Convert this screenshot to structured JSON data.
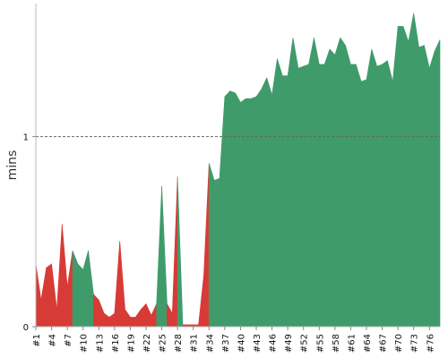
{
  "chart_data": {
    "type": "area",
    "ylabel": "mins",
    "ylim": [
      0,
      1.7
    ],
    "yticks": [
      0,
      1
    ],
    "reference_line": {
      "y": 1.0,
      "style": "dashed"
    },
    "colors": {
      "below": "#d83a36",
      "above": "#3f9b6a"
    },
    "x_tick_labels": [
      "#1",
      "#4",
      "#7",
      "#10",
      "#13",
      "#16",
      "#19",
      "#22",
      "#25",
      "#28",
      "#31",
      "#34",
      "#37",
      "#40",
      "#43",
      "#46",
      "#49",
      "#52",
      "#55",
      "#58",
      "#61",
      "#64",
      "#67",
      "#70",
      "#73",
      "#76"
    ],
    "x": [
      "#1",
      "#2",
      "#3",
      "#4",
      "#5",
      "#6",
      "#7",
      "#8",
      "#9",
      "#10",
      "#11",
      "#12",
      "#13",
      "#14",
      "#15",
      "#16",
      "#17",
      "#18",
      "#19",
      "#20",
      "#21",
      "#22",
      "#23",
      "#24",
      "#25",
      "#26",
      "#27",
      "#28",
      "#29",
      "#30",
      "#31",
      "#32",
      "#33",
      "#34",
      "#35",
      "#36",
      "#37",
      "#38",
      "#39",
      "#40",
      "#41",
      "#42",
      "#43",
      "#44",
      "#45",
      "#46",
      "#47",
      "#48",
      "#49",
      "#50",
      "#51",
      "#52",
      "#53",
      "#54",
      "#55",
      "#56",
      "#57",
      "#58",
      "#59",
      "#60",
      "#61",
      "#62",
      "#63",
      "#64",
      "#65",
      "#66",
      "#67",
      "#68",
      "#69",
      "#70",
      "#71",
      "#72",
      "#73",
      "#74",
      "#75",
      "#76",
      "#77",
      "#78"
    ],
    "values": [
      0.33,
      0.14,
      0.31,
      0.33,
      0.09,
      0.54,
      0.21,
      0.4,
      0.33,
      0.3,
      0.4,
      0.17,
      0.14,
      0.07,
      0.05,
      0.07,
      0.45,
      0.09,
      0.05,
      0.05,
      0.09,
      0.12,
      0.06,
      0.12,
      0.74,
      0.12,
      0.07,
      0.79,
      0.01,
      0.01,
      0.01,
      0.01,
      0.27,
      0.86,
      0.77,
      0.78,
      1.21,
      1.24,
      1.23,
      1.18,
      1.2,
      1.2,
      1.21,
      1.25,
      1.31,
      1.22,
      1.41,
      1.32,
      1.32,
      1.52,
      1.36,
      1.37,
      1.38,
      1.52,
      1.38,
      1.38,
      1.46,
      1.43,
      1.52,
      1.48,
      1.38,
      1.38,
      1.29,
      1.3,
      1.46,
      1.37,
      1.38,
      1.4,
      1.29,
      1.58,
      1.58,
      1.5,
      1.65,
      1.47,
      1.48,
      1.36,
      1.45,
      1.51
    ],
    "series_colors_per_point": [
      "below",
      "below",
      "below",
      "below",
      "below",
      "below",
      "below",
      "above",
      "above",
      "above",
      "above",
      "below",
      "below",
      "below",
      "below",
      "below",
      "below",
      "below",
      "below",
      "below",
      "below",
      "below",
      "below",
      "above",
      "above",
      "below",
      "below",
      "above",
      "below",
      "below",
      "below",
      "below",
      "below",
      "above",
      "above",
      "above",
      "above",
      "above",
      "above",
      "above",
      "above",
      "above",
      "above",
      "above",
      "above",
      "above",
      "above",
      "above",
      "above",
      "above",
      "above",
      "above",
      "above",
      "above",
      "above",
      "above",
      "above",
      "above",
      "above",
      "above",
      "above",
      "above",
      "above",
      "above",
      "above",
      "above",
      "above",
      "above",
      "above",
      "above",
      "above",
      "above",
      "above",
      "above",
      "above",
      "above",
      "above",
      "above"
    ]
  }
}
